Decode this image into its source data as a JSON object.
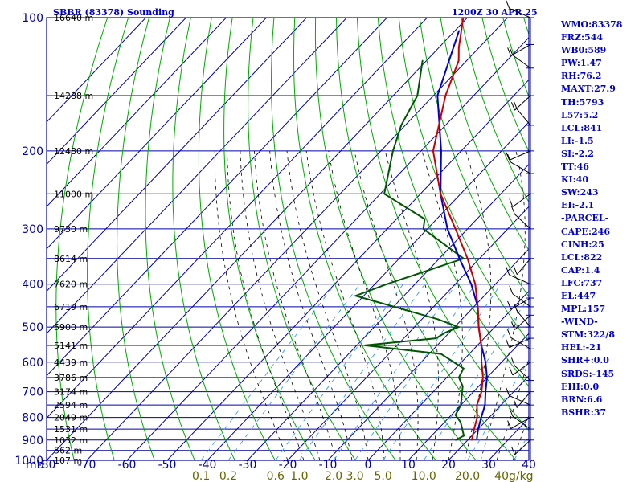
{
  "header": {
    "station": "SBBR (83378) Sounding",
    "valid_time": "1200Z 30 APR 25"
  },
  "indices": [
    "WMO:83378",
    "FRZ:544",
    "WB0:589",
    "PW:1.47",
    "RH:76.2",
    "MAXT:27.9",
    "TH:5793",
    "L57:5.2",
    "LCL:841",
    "LI:-1.5",
    "SI:-2.2",
    "TT:46",
    "KI:40",
    "SW:243",
    "EI:-2.1",
    "-PARCEL-",
    "CAPE:246",
    "CINH:25",
    "LCL:822",
    "CAP:1.4",
    "LFC:737",
    "EL:447",
    "MPL:157",
    "-WIND-",
    "STM:322/8",
    "HEL:-21",
    "SHR+:0.0",
    "SRDS:-145",
    "EHI:0.0",
    "BRN:6.6",
    "BSHR:37"
  ],
  "colors": {
    "frame": "#0000aa",
    "isobar": "#0000aa",
    "isotherm": "#0000aa",
    "dry_adiabat": "#00aa00",
    "moist_adiabat": "#000000",
    "mixing_ratio": "#3399ff",
    "temperature": "#cc0000",
    "dewpoint": "#005500",
    "parcel": "#0000cc",
    "mixing_ratio_labels": "#666600",
    "wind": "#000000"
  },
  "chart_data": {
    "type": "skew-t",
    "xlabel": "",
    "ylabel": "mb",
    "pressure_levels": [
      {
        "p": 100,
        "label": "100",
        "height": "16640 m"
      },
      {
        "p": 150,
        "label": "",
        "height": "14288 m"
      },
      {
        "p": 200,
        "label": "200",
        "height": "12480 m"
      },
      {
        "p": 250,
        "label": "",
        "height": "11000 m"
      },
      {
        "p": 300,
        "label": "300",
        "height": "9730 m"
      },
      {
        "p": 350,
        "label": "",
        "height": "8614 m"
      },
      {
        "p": 400,
        "label": "400",
        "height": "7620 m"
      },
      {
        "p": 450,
        "label": "",
        "height": "6719 m"
      },
      {
        "p": 500,
        "label": "500",
        "height": "5900 m"
      },
      {
        "p": 550,
        "label": "",
        "height": "5141 m"
      },
      {
        "p": 600,
        "label": "600",
        "height": "4439 m"
      },
      {
        "p": 650,
        "label": "",
        "height": "3786 m"
      },
      {
        "p": 700,
        "label": "700",
        "height": "3174 m"
      },
      {
        "p": 750,
        "label": "",
        "height": "2594 m"
      },
      {
        "p": 800,
        "label": "800",
        "height": "2049 m"
      },
      {
        "p": 850,
        "label": "",
        "height": "1531 m"
      },
      {
        "p": 900,
        "label": "900",
        "height": "1032 m"
      },
      {
        "p": 950,
        "label": "",
        "height": "562 m"
      },
      {
        "p": 1000,
        "label": "1000",
        "height": "107 m"
      }
    ],
    "temperature_ticks": [
      {
        "t": -80,
        "label": "-80"
      },
      {
        "t": -70,
        "label": "-70"
      },
      {
        "t": -60,
        "label": "-60"
      },
      {
        "t": -50,
        "label": "-50"
      },
      {
        "t": -40,
        "label": "-40"
      },
      {
        "t": -30,
        "label": "-30"
      },
      {
        "t": -20,
        "label": "-20"
      },
      {
        "t": -10,
        "label": "-10"
      },
      {
        "t": 0,
        "label": "0"
      },
      {
        "t": 10,
        "label": "10"
      },
      {
        "t": 20,
        "label": "20"
      },
      {
        "t": 30,
        "label": "30"
      },
      {
        "t": 40,
        "label": "40"
      }
    ],
    "mixing_ratio_ticks": [
      {
        "w": 0.1,
        "label": "0.1"
      },
      {
        "w": 0.2,
        "label": "0.2"
      },
      {
        "w": 0.6,
        "label": "0.6"
      },
      {
        "w": 1.0,
        "label": "1.0"
      },
      {
        "w": 2.0,
        "label": "2.0"
      },
      {
        "w": 3.0,
        "label": "3.0"
      },
      {
        "w": 5.0,
        "label": "5.0"
      },
      {
        "w": 10.0,
        "label": "10.0"
      },
      {
        "w": 20.0,
        "label": "20.0"
      },
      {
        "w": 40.0,
        "label": "40g/kg"
      }
    ],
    "p_range": [
      100,
      1000
    ],
    "t_range_at_surface": [
      -80,
      40
    ],
    "temperature": [
      {
        "p": 100,
        "t": -81
      },
      {
        "p": 117,
        "t": -75
      },
      {
        "p": 125,
        "t": -72
      },
      {
        "p": 150,
        "t": -67
      },
      {
        "p": 200,
        "t": -57
      },
      {
        "p": 250,
        "t": -45
      },
      {
        "p": 300,
        "t": -33
      },
      {
        "p": 350,
        "t": -23
      },
      {
        "p": 400,
        "t": -15
      },
      {
        "p": 450,
        "t": -9
      },
      {
        "p": 500,
        "t": -4
      },
      {
        "p": 550,
        "t": 1
      },
      {
        "p": 600,
        "t": 5
      },
      {
        "p": 650,
        "t": 9
      },
      {
        "p": 700,
        "t": 12
      },
      {
        "p": 750,
        "t": 14
      },
      {
        "p": 800,
        "t": 17
      },
      {
        "p": 850,
        "t": 19
      },
      {
        "p": 900,
        "t": 21
      }
    ],
    "dewpoint": [
      {
        "p": 125,
        "t": -81
      },
      {
        "p": 150,
        "t": -74
      },
      {
        "p": 175,
        "t": -71
      },
      {
        "p": 200,
        "t": -67
      },
      {
        "p": 250,
        "t": -59
      },
      {
        "p": 285,
        "t": -43
      },
      {
        "p": 300,
        "t": -41
      },
      {
        "p": 350,
        "t": -24
      },
      {
        "p": 400,
        "t": -37
      },
      {
        "p": 425,
        "t": -42
      },
      {
        "p": 480,
        "t": -16
      },
      {
        "p": 500,
        "t": -9
      },
      {
        "p": 515,
        "t": -11
      },
      {
        "p": 530,
        "t": -12
      },
      {
        "p": 550,
        "t": -28
      },
      {
        "p": 575,
        "t": -7
      },
      {
        "p": 620,
        "t": 2
      },
      {
        "p": 650,
        "t": 3
      },
      {
        "p": 680,
        "t": 6
      },
      {
        "p": 750,
        "t": 10
      },
      {
        "p": 790,
        "t": 11
      },
      {
        "p": 820,
        "t": 14
      },
      {
        "p": 880,
        "t": 18
      },
      {
        "p": 900,
        "t": 17
      }
    ],
    "parcel": [
      {
        "p": 107,
        "t": -79
      },
      {
        "p": 150,
        "t": -69
      },
      {
        "p": 200,
        "t": -55
      },
      {
        "p": 250,
        "t": -45
      },
      {
        "p": 300,
        "t": -35
      },
      {
        "p": 350,
        "t": -25
      },
      {
        "p": 400,
        "t": -16
      },
      {
        "p": 450,
        "t": -9
      },
      {
        "p": 500,
        "t": -4
      },
      {
        "p": 550,
        "t": 1
      },
      {
        "p": 600,
        "t": 6
      },
      {
        "p": 650,
        "t": 10
      },
      {
        "p": 700,
        "t": 13
      },
      {
        "p": 750,
        "t": 16
      },
      {
        "p": 800,
        "t": 18
      },
      {
        "p": 850,
        "t": 20
      },
      {
        "p": 895,
        "t": 22
      }
    ],
    "grid": {
      "isobars_mb": [
        100,
        150,
        200,
        250,
        300,
        350,
        400,
        450,
        500,
        550,
        600,
        650,
        700,
        750,
        800,
        850,
        900,
        950,
        1000
      ],
      "isotherm_step_c": 10,
      "dry_adiabats": "multiple",
      "moist_adiabats": "multiple",
      "mixing_ratio_lines": [
        0.1,
        0.2,
        0.6,
        1.0,
        2.0,
        3.0,
        5.0,
        10.0,
        20.0,
        40.0
      ]
    },
    "wind_barbs": [
      {
        "p": 100
      },
      {
        "p": 115
      },
      {
        "p": 130
      },
      {
        "p": 150
      },
      {
        "p": 175
      },
      {
        "p": 200
      },
      {
        "p": 225
      },
      {
        "p": 250
      },
      {
        "p": 300
      },
      {
        "p": 350
      },
      {
        "p": 400
      },
      {
        "p": 430
      },
      {
        "p": 450
      },
      {
        "p": 470
      },
      {
        "p": 500
      },
      {
        "p": 530
      },
      {
        "p": 560
      },
      {
        "p": 600
      },
      {
        "p": 660
      },
      {
        "p": 700
      },
      {
        "p": 750
      },
      {
        "p": 800
      },
      {
        "p": 850
      },
      {
        "p": 900
      }
    ]
  }
}
